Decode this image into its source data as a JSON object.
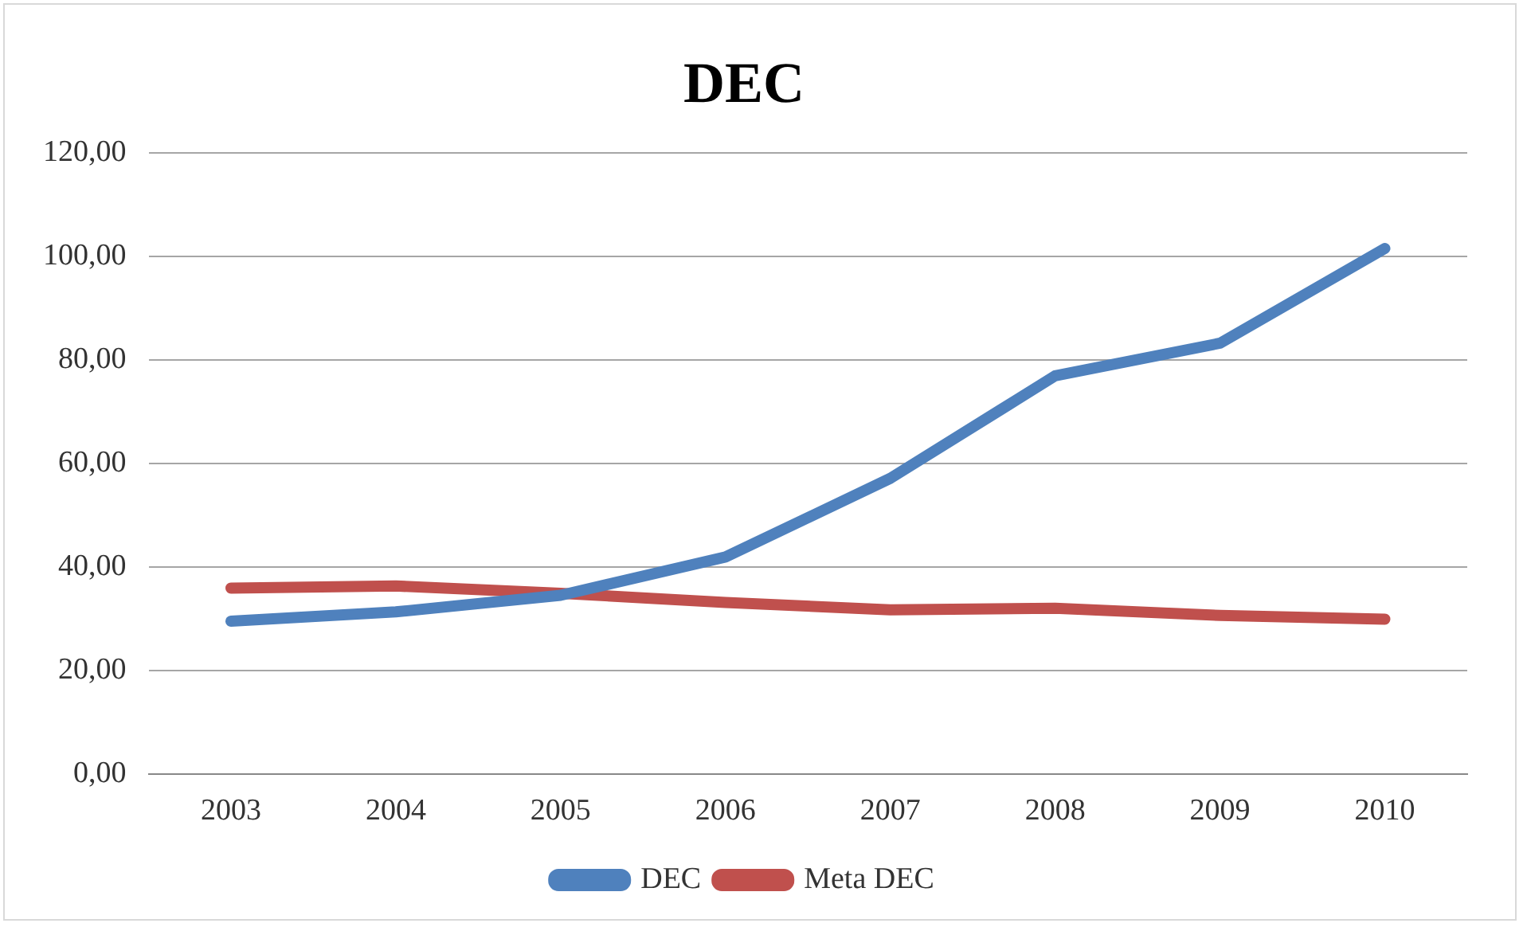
{
  "chart_data": {
    "type": "line",
    "title": "DEC",
    "categories": [
      "2003",
      "2004",
      "2005",
      "2006",
      "2007",
      "2008",
      "2009",
      "2010"
    ],
    "series": [
      {
        "name": "DEC",
        "color": "#4f81bd",
        "values": [
          29.6,
          31.4,
          34.6,
          42,
          57.2,
          77,
          83.3,
          101.6
        ]
      },
      {
        "name": "Meta DEC",
        "color": "#c0504d",
        "values": [
          36,
          36.4,
          35,
          33.2,
          31.8,
          32.1,
          30.7,
          30
        ]
      }
    ],
    "ylim": [
      0,
      120
    ],
    "yticks": [
      {
        "value": 0,
        "label": "0,00"
      },
      {
        "value": 20,
        "label": "20,00"
      },
      {
        "value": 40,
        "label": "40,00"
      },
      {
        "value": 60,
        "label": "60,00"
      },
      {
        "value": 80,
        "label": "80,00"
      },
      {
        "value": 100,
        "label": "100,00"
      },
      {
        "value": 120,
        "label": "120,00"
      }
    ],
    "grid": "y",
    "legend": "bottom",
    "marker": "none",
    "line_style": "solid"
  }
}
